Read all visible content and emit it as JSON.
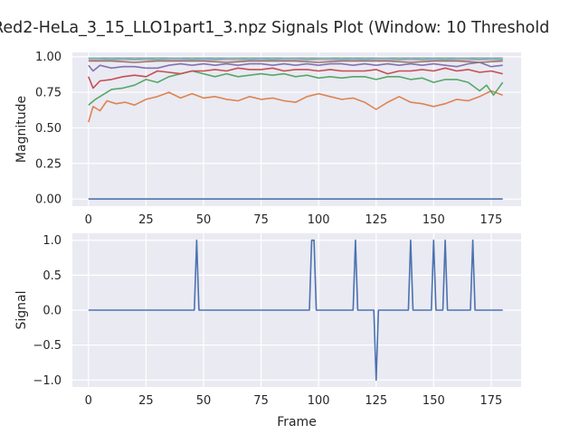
{
  "chart_data": [
    {
      "type": "line",
      "title": "Red2-HeLa_3_15_LLO1part1_3.npz Signals Plot (Window: 10 Threshold",
      "xlabel": "",
      "ylabel": "Magnitude",
      "xlim": [
        -7,
        188
      ],
      "ylim": [
        -0.05,
        1.03
      ],
      "xticks": [
        0,
        25,
        50,
        75,
        100,
        125,
        150,
        175
      ],
      "yticks": [
        0.0,
        0.25,
        0.5,
        0.75,
        1.0
      ],
      "ytick_labels": [
        "0.00",
        "0.25",
        "0.50",
        "0.75",
        "1.00"
      ],
      "grid": true,
      "series": [
        {
          "color": "#4c72b0",
          "x": [
            0,
            180
          ],
          "y": [
            0.0,
            0.0
          ]
        },
        {
          "color": "#dd8452",
          "x": [
            0,
            2,
            5,
            8,
            12,
            16,
            20,
            25,
            30,
            35,
            40,
            45,
            50,
            55,
            60,
            65,
            70,
            75,
            80,
            85,
            90,
            95,
            100,
            105,
            110,
            115,
            120,
            125,
            130,
            135,
            140,
            145,
            150,
            155,
            160,
            165,
            170,
            175,
            180
          ],
          "y": [
            0.54,
            0.65,
            0.62,
            0.69,
            0.67,
            0.68,
            0.66,
            0.7,
            0.72,
            0.75,
            0.71,
            0.74,
            0.71,
            0.72,
            0.7,
            0.69,
            0.72,
            0.7,
            0.71,
            0.69,
            0.68,
            0.72,
            0.74,
            0.72,
            0.7,
            0.71,
            0.68,
            0.63,
            0.68,
            0.72,
            0.68,
            0.67,
            0.65,
            0.67,
            0.7,
            0.69,
            0.72,
            0.76,
            0.73
          ]
        },
        {
          "color": "#55a868",
          "x": [
            0,
            3,
            6,
            10,
            15,
            20,
            25,
            30,
            35,
            40,
            45,
            50,
            55,
            60,
            65,
            70,
            75,
            80,
            85,
            90,
            95,
            100,
            105,
            110,
            115,
            120,
            125,
            130,
            135,
            140,
            145,
            150,
            155,
            160,
            165,
            170,
            173,
            176,
            180
          ],
          "y": [
            0.66,
            0.7,
            0.73,
            0.77,
            0.78,
            0.8,
            0.84,
            0.82,
            0.86,
            0.88,
            0.9,
            0.88,
            0.86,
            0.88,
            0.86,
            0.87,
            0.88,
            0.87,
            0.88,
            0.86,
            0.87,
            0.85,
            0.86,
            0.85,
            0.86,
            0.86,
            0.84,
            0.86,
            0.86,
            0.84,
            0.85,
            0.82,
            0.84,
            0.84,
            0.82,
            0.76,
            0.8,
            0.73,
            0.82
          ]
        },
        {
          "color": "#c44e52",
          "x": [
            0,
            2,
            5,
            10,
            15,
            20,
            25,
            30,
            35,
            40,
            45,
            50,
            55,
            60,
            65,
            70,
            75,
            80,
            85,
            90,
            95,
            100,
            105,
            110,
            115,
            120,
            125,
            130,
            135,
            140,
            145,
            150,
            155,
            160,
            165,
            170,
            175,
            180
          ],
          "y": [
            0.86,
            0.78,
            0.83,
            0.84,
            0.86,
            0.87,
            0.86,
            0.9,
            0.89,
            0.88,
            0.9,
            0.9,
            0.91,
            0.9,
            0.92,
            0.91,
            0.91,
            0.92,
            0.9,
            0.91,
            0.91,
            0.9,
            0.91,
            0.9,
            0.9,
            0.9,
            0.91,
            0.88,
            0.9,
            0.9,
            0.91,
            0.9,
            0.92,
            0.9,
            0.91,
            0.89,
            0.9,
            0.88
          ]
        },
        {
          "color": "#8172b3",
          "x": [
            0,
            2,
            5,
            10,
            15,
            20,
            25,
            30,
            35,
            40,
            45,
            50,
            55,
            60,
            65,
            70,
            75,
            80,
            85,
            90,
            95,
            100,
            105,
            110,
            115,
            120,
            125,
            130,
            135,
            140,
            145,
            150,
            155,
            160,
            165,
            170,
            175,
            180
          ],
          "y": [
            0.94,
            0.9,
            0.94,
            0.92,
            0.93,
            0.93,
            0.92,
            0.92,
            0.94,
            0.95,
            0.94,
            0.95,
            0.94,
            0.95,
            0.94,
            0.95,
            0.95,
            0.94,
            0.95,
            0.94,
            0.95,
            0.94,
            0.95,
            0.95,
            0.94,
            0.95,
            0.94,
            0.95,
            0.94,
            0.95,
            0.94,
            0.95,
            0.94,
            0.93,
            0.95,
            0.96,
            0.93,
            0.94
          ]
        },
        {
          "color": "#937860",
          "x": [
            0,
            10,
            20,
            30,
            40,
            50,
            60,
            70,
            80,
            90,
            100,
            110,
            120,
            130,
            140,
            150,
            160,
            170,
            180
          ],
          "y": [
            0.97,
            0.97,
            0.96,
            0.97,
            0.97,
            0.97,
            0.96,
            0.97,
            0.97,
            0.97,
            0.96,
            0.97,
            0.97,
            0.97,
            0.96,
            0.97,
            0.97,
            0.96,
            0.97
          ]
        },
        {
          "color": "#da8bc3",
          "x": [
            0,
            10,
            20,
            30,
            40,
            50,
            60,
            70,
            80,
            90,
            100,
            110,
            120,
            130,
            140,
            150,
            160,
            170,
            180
          ],
          "y": [
            0.98,
            0.98,
            0.98,
            0.98,
            0.98,
            0.98,
            0.98,
            0.98,
            0.98,
            0.98,
            0.98,
            0.98,
            0.98,
            0.98,
            0.98,
            0.98,
            0.98,
            0.98,
            0.98
          ]
        },
        {
          "color": "#8c8c8c",
          "x": [
            0,
            10,
            20,
            30,
            40,
            50,
            60,
            70,
            80,
            90,
            100,
            110,
            120,
            130,
            140,
            150,
            160,
            170,
            180
          ],
          "y": [
            0.99,
            0.99,
            0.99,
            0.99,
            0.99,
            0.99,
            0.99,
            0.99,
            0.99,
            0.99,
            0.99,
            0.99,
            0.99,
            0.99,
            0.99,
            0.99,
            0.99,
            0.99,
            0.99
          ]
        },
        {
          "color": "#ccb974",
          "x": [
            0,
            10,
            20,
            30,
            40,
            50,
            60,
            70,
            80,
            90,
            100,
            110,
            120,
            130,
            140,
            150,
            160,
            170,
            180
          ],
          "y": [
            0.985,
            0.985,
            0.985,
            0.985,
            0.985,
            0.985,
            0.985,
            0.985,
            0.985,
            0.985,
            0.985,
            0.985,
            0.985,
            0.985,
            0.985,
            0.985,
            0.985,
            0.985,
            0.985
          ]
        },
        {
          "color": "#64b5cd",
          "x": [
            0,
            5,
            10,
            15,
            20,
            25,
            30,
            35,
            40,
            45,
            50,
            55,
            60,
            65,
            70,
            75,
            80,
            85,
            90,
            95,
            100,
            105,
            110,
            115,
            120,
            125,
            130,
            135,
            140,
            145,
            150,
            155,
            160,
            165,
            170,
            175,
            180
          ],
          "y": [
            0.99,
            0.99,
            0.98,
            0.99,
            0.98,
            0.99,
            0.98,
            0.99,
            0.99,
            0.98,
            0.99,
            0.98,
            0.99,
            0.99,
            0.98,
            0.99,
            0.98,
            0.99,
            0.99,
            0.98,
            0.99,
            0.99,
            0.98,
            0.99,
            0.98,
            0.99,
            0.99,
            0.98,
            0.99,
            0.98,
            0.99,
            0.98,
            0.99,
            0.99,
            0.98,
            0.99,
            0.98
          ]
        }
      ]
    },
    {
      "type": "line",
      "title": "",
      "xlabel": "Frame",
      "ylabel": "Signal",
      "xlim": [
        -7,
        188
      ],
      "ylim": [
        -1.1,
        1.1
      ],
      "xticks": [
        0,
        25,
        50,
        75,
        100,
        125,
        150,
        175
      ],
      "yticks": [
        -1.0,
        -0.5,
        0.0,
        0.5,
        1.0
      ],
      "ytick_labels": [
        "−1.0",
        "−0.5",
        "0.0",
        "0.5",
        "1.0"
      ],
      "grid": true,
      "series": [
        {
          "color": "#4c72b0",
          "x": [
            0,
            46,
            47,
            48,
            96,
            97,
            98,
            99,
            115,
            116,
            117,
            124,
            125,
            126,
            139,
            140,
            141,
            149,
            150,
            151,
            154,
            155,
            156,
            166,
            167,
            168,
            180
          ],
          "y": [
            0,
            0,
            1,
            0,
            0,
            1,
            1,
            0,
            0,
            1,
            0,
            0,
            -1,
            0,
            0,
            1,
            0,
            0,
            1,
            0,
            0,
            1,
            0,
            0,
            1,
            0,
            0
          ]
        }
      ]
    }
  ]
}
